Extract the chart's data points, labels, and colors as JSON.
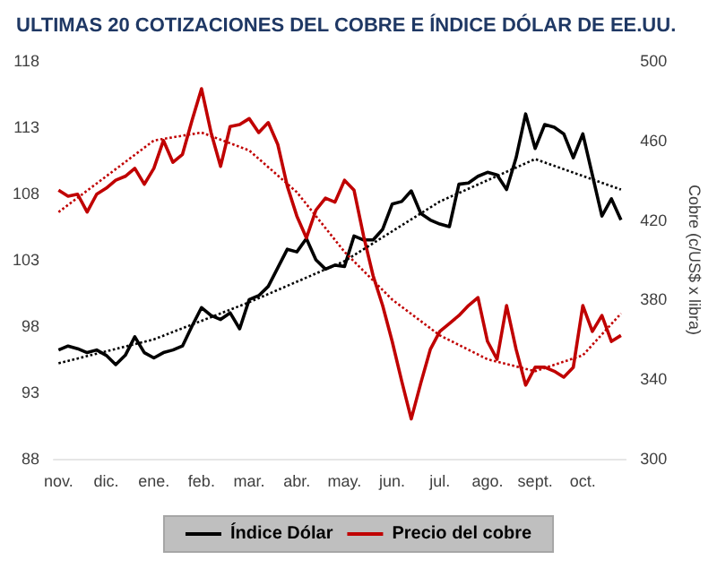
{
  "chart_data": {
    "type": "line",
    "title": "ULTIMAS 20 COTIZACIONES DEL COBRE E ÍNDICE DÓLAR DE EE.UU.",
    "y2label": "Cobre (c/US$ x libra)",
    "categories": [
      "nov.",
      null,
      null,
      null,
      null,
      "dic.",
      null,
      null,
      null,
      null,
      "ene.",
      null,
      null,
      null,
      null,
      "feb.",
      null,
      null,
      null,
      null,
      "mar.",
      null,
      null,
      null,
      null,
      "abr.",
      null,
      null,
      null,
      null,
      "may.",
      null,
      null,
      null,
      null,
      "jun.",
      null,
      null,
      null,
      null,
      "jul.",
      null,
      null,
      null,
      null,
      "ago.",
      null,
      null,
      null,
      null,
      "sept.",
      null,
      null,
      null,
      null,
      "oct.",
      null,
      null,
      null,
      null
    ],
    "series": [
      {
        "name": "Índice Dólar",
        "color": "#000000",
        "values": [
          96.2,
          96.5,
          96.3,
          96.0,
          96.2,
          95.8,
          95.1,
          95.8,
          97.2,
          96.0,
          95.6,
          96.0,
          96.2,
          96.5,
          98.0,
          99.4,
          98.8,
          98.5,
          99.0,
          97.8,
          100.0,
          100.3,
          101.0,
          102.4,
          103.8,
          103.6,
          104.6,
          103.0,
          102.3,
          102.6,
          102.5,
          104.8,
          104.5,
          104.5,
          105.3,
          107.2,
          107.4,
          108.2,
          106.5,
          106.0,
          105.7,
          105.5,
          108.7,
          108.8,
          109.3,
          109.6,
          109.4,
          108.3,
          110.7,
          114.0,
          111.4,
          113.2,
          113.0,
          112.5,
          110.7,
          112.5,
          109.4,
          106.3,
          107.6,
          106.0
        ]
      },
      {
        "name": "Precio del cobre",
        "color": "#c00000",
        "axis": "y2",
        "values": [
          435,
          432,
          433,
          424,
          433,
          436,
          440,
          442,
          446,
          438,
          446,
          460,
          449,
          453,
          470,
          486,
          464,
          447,
          467,
          468,
          471,
          464,
          469,
          458,
          437,
          422,
          411,
          425,
          431,
          429,
          440,
          435,
          412,
          392,
          377,
          359,
          339,
          320,
          338,
          355,
          364,
          368,
          372,
          377,
          381,
          359,
          350,
          377,
          355,
          337,
          346,
          346,
          344,
          341,
          346,
          377,
          364,
          372,
          359,
          362
        ]
      },
      {
        "type": "line",
        "color": "#000000",
        "line_style": "dotted",
        "values": [
          95.2,
          null,
          null,
          null,
          null,
          null,
          null,
          null,
          null,
          null,
          97.0,
          null,
          null,
          null,
          null,
          null,
          null,
          null,
          null,
          null,
          99.8,
          null,
          null,
          null,
          null,
          null,
          null,
          null,
          null,
          null,
          102.9,
          null,
          null,
          null,
          null,
          null,
          null,
          null,
          null,
          null,
          107.4,
          null,
          null,
          null,
          null,
          null,
          null,
          null,
          null,
          null,
          110.6,
          null,
          null,
          null,
          null,
          null,
          null,
          null,
          null,
          108.3
        ]
      },
      {
        "type": "line",
        "color": "#c00000",
        "axis": "y2",
        "line_style": "dotted",
        "values": [
          424,
          null,
          null,
          null,
          null,
          null,
          null,
          null,
          null,
          null,
          460,
          null,
          null,
          null,
          null,
          464,
          null,
          null,
          null,
          null,
          455,
          null,
          null,
          null,
          null,
          434,
          null,
          null,
          null,
          null,
          404,
          null,
          null,
          null,
          null,
          380,
          null,
          null,
          null,
          null,
          362,
          null,
          null,
          null,
          null,
          350,
          null,
          null,
          null,
          null,
          344,
          null,
          null,
          null,
          null,
          352,
          null,
          null,
          null,
          373
        ]
      }
    ],
    "ylim": [
      88,
      118
    ],
    "yticks": [
      88,
      93,
      98,
      103,
      108,
      113,
      118
    ],
    "y2lim": [
      300,
      500
    ],
    "y2ticks": [
      300,
      340,
      380,
      420,
      460,
      500
    ],
    "legend": "bottom",
    "grid": false,
    "marker": "none",
    "line_style": "solid"
  }
}
